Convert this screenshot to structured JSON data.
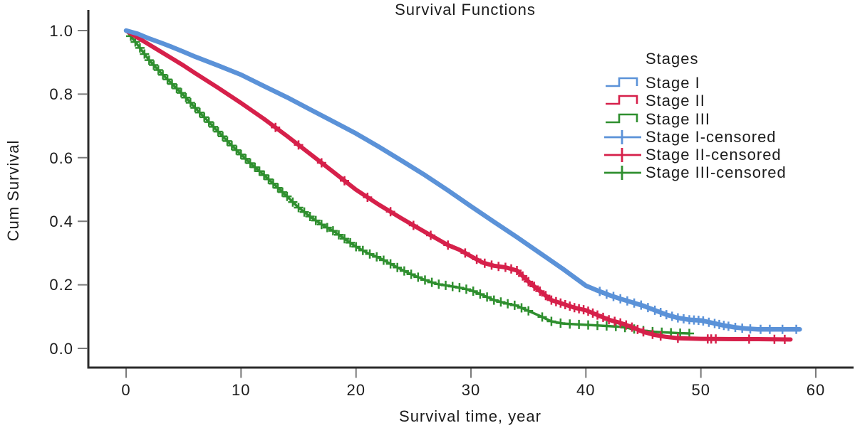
{
  "chart_data": {
    "type": "line",
    "subtype": "kaplan_meier_survival",
    "title": "Survival Functions",
    "xlabel": "Survival time, year",
    "ylabel": "Cum Survival",
    "xlim": [
      0,
      60
    ],
    "ylim": [
      0.0,
      1.0
    ],
    "grid": false,
    "x_ticks": [
      0,
      10,
      20,
      30,
      40,
      50,
      60
    ],
    "y_ticks": [
      1.0,
      0.8,
      0.6,
      0.4,
      0.2,
      0.0
    ],
    "x_tick_labels": [
      "0",
      "10",
      "20",
      "30",
      "40",
      "50",
      "60"
    ],
    "y_tick_labels": [
      "1.0",
      "0.8",
      "0.6",
      "0.4",
      "0.2",
      "0.0"
    ],
    "legend_position": "upper right",
    "legend": {
      "title": "Stages",
      "entries": [
        "Stage I",
        "Stage II",
        "Stage III",
        "Stage I-censored",
        "Stage II-censored",
        "Stage III-censored"
      ]
    },
    "series": [
      {
        "name": "Stage I",
        "color": "#5B92D8",
        "stroke_width": 6.5,
        "points": [
          [
            0,
            1.0
          ],
          [
            1,
            0.99
          ],
          [
            2,
            0.975
          ],
          [
            3,
            0.962
          ],
          [
            4,
            0.948
          ],
          [
            5,
            0.933
          ],
          [
            6,
            0.918
          ],
          [
            8,
            0.89
          ],
          [
            10,
            0.861
          ],
          [
            12,
            0.825
          ],
          [
            14,
            0.79
          ],
          [
            16,
            0.752
          ],
          [
            18,
            0.714
          ],
          [
            20,
            0.676
          ],
          [
            22,
            0.634
          ],
          [
            24,
            0.59
          ],
          [
            26,
            0.545
          ],
          [
            28,
            0.497
          ],
          [
            30,
            0.447
          ],
          [
            32,
            0.398
          ],
          [
            34,
            0.35
          ],
          [
            36,
            0.3
          ],
          [
            38,
            0.25
          ],
          [
            40,
            0.197
          ],
          [
            41,
            0.182
          ],
          [
            42,
            0.168
          ],
          [
            43,
            0.156
          ],
          [
            44,
            0.145
          ],
          [
            45,
            0.134
          ],
          [
            46,
            0.12
          ],
          [
            47,
            0.106
          ],
          [
            48,
            0.096
          ],
          [
            49,
            0.09
          ],
          [
            50,
            0.088
          ],
          [
            51,
            0.08
          ],
          [
            52,
            0.072
          ],
          [
            53,
            0.066
          ],
          [
            54,
            0.062
          ],
          [
            55,
            0.06
          ],
          [
            56,
            0.06
          ],
          [
            57,
            0.06
          ],
          [
            58.6,
            0.06
          ]
        ],
        "censored": [
          41.2,
          41.8,
          42.4,
          43,
          43.6,
          44.2,
          44.8,
          45.4,
          46,
          46.5,
          47,
          47.5,
          48,
          48.5,
          49,
          49.4,
          49.8,
          50.2,
          50.7,
          51.2,
          51.6,
          52,
          52.4,
          53,
          53.6,
          54.3,
          55.2,
          56,
          57.1,
          58.3
        ]
      },
      {
        "name": "Stage II",
        "color": "#D6204A",
        "stroke_width": 6,
        "points": [
          [
            0,
            1.0
          ],
          [
            1,
            0.978
          ],
          [
            2,
            0.956
          ],
          [
            3,
            0.934
          ],
          [
            4,
            0.912
          ],
          [
            5,
            0.89
          ],
          [
            6,
            0.866
          ],
          [
            8,
            0.82
          ],
          [
            10,
            0.772
          ],
          [
            12,
            0.722
          ],
          [
            14,
            0.668
          ],
          [
            16,
            0.612
          ],
          [
            18,
            0.556
          ],
          [
            20,
            0.499
          ],
          [
            22,
            0.452
          ],
          [
            24,
            0.408
          ],
          [
            26,
            0.366
          ],
          [
            28,
            0.325
          ],
          [
            29,
            0.31
          ],
          [
            30,
            0.29
          ],
          [
            31,
            0.27
          ],
          [
            32,
            0.26
          ],
          [
            33,
            0.255
          ],
          [
            34,
            0.245
          ],
          [
            35,
            0.21
          ],
          [
            36,
            0.18
          ],
          [
            37,
            0.152
          ],
          [
            38,
            0.14
          ],
          [
            39,
            0.128
          ],
          [
            40,
            0.12
          ],
          [
            41,
            0.105
          ],
          [
            42,
            0.09
          ],
          [
            43,
            0.08
          ],
          [
            44,
            0.067
          ],
          [
            45,
            0.052
          ],
          [
            46,
            0.042
          ],
          [
            47,
            0.036
          ],
          [
            48,
            0.032
          ],
          [
            50,
            0.03
          ],
          [
            53,
            0.029
          ],
          [
            55,
            0.029
          ],
          [
            57.8,
            0.028
          ]
        ],
        "censored": [
          13,
          15,
          17,
          19,
          21,
          23,
          25,
          26.5,
          28,
          29.5,
          30.5,
          31.2,
          31.8,
          32.4,
          33,
          33.5,
          34,
          34.5,
          35,
          35.5,
          36,
          36.5,
          37,
          37.4,
          37.8,
          38.2,
          38.6,
          39,
          39.4,
          39.8,
          40.2,
          40.6,
          41,
          41.5,
          42,
          42.5,
          43,
          43.5,
          44,
          44.5,
          45,
          45.8,
          46.5,
          48,
          50.6,
          50.9,
          51.3,
          54.2,
          56.4,
          57.3
        ]
      },
      {
        "name": "Stage III",
        "color": "#2F8F2F",
        "stroke_width": 3.5,
        "points": [
          [
            0,
            1.0
          ],
          [
            0.5,
            0.978
          ],
          [
            1,
            0.955
          ],
          [
            2,
            0.907
          ],
          [
            3,
            0.868
          ],
          [
            4,
            0.832
          ],
          [
            5,
            0.797
          ],
          [
            6,
            0.757
          ],
          [
            7,
            0.72
          ],
          [
            8,
            0.682
          ],
          [
            9,
            0.645
          ],
          [
            10,
            0.61
          ],
          [
            11,
            0.576
          ],
          [
            12,
            0.545
          ],
          [
            13,
            0.512
          ],
          [
            14,
            0.478
          ],
          [
            15,
            0.443
          ],
          [
            16,
            0.415
          ],
          [
            17,
            0.39
          ],
          [
            18,
            0.37
          ],
          [
            19,
            0.345
          ],
          [
            20,
            0.32
          ],
          [
            21,
            0.3
          ],
          [
            22,
            0.285
          ],
          [
            23,
            0.266
          ],
          [
            24,
            0.247
          ],
          [
            25,
            0.23
          ],
          [
            26,
            0.215
          ],
          [
            27,
            0.203
          ],
          [
            28,
            0.197
          ],
          [
            29,
            0.191
          ],
          [
            30,
            0.183
          ],
          [
            31,
            0.168
          ],
          [
            32,
            0.152
          ],
          [
            33,
            0.142
          ],
          [
            34,
            0.134
          ],
          [
            35,
            0.118
          ],
          [
            36,
            0.102
          ],
          [
            37,
            0.085
          ],
          [
            38,
            0.078
          ],
          [
            39,
            0.076
          ],
          [
            40,
            0.074
          ],
          [
            41,
            0.072
          ],
          [
            42,
            0.07
          ],
          [
            43,
            0.068
          ],
          [
            44,
            0.062
          ],
          [
            45,
            0.056
          ],
          [
            46,
            0.052
          ],
          [
            47,
            0.05
          ],
          [
            48,
            0.048
          ],
          [
            49,
            0.047
          ]
        ],
        "censored": [
          0.4,
          0.8,
          1.2,
          1.6,
          2,
          2.4,
          2.8,
          3.2,
          3.6,
          4,
          4.4,
          4.8,
          5.2,
          5.6,
          6,
          6.4,
          6.8,
          7.2,
          7.6,
          8,
          8.4,
          8.8,
          9.2,
          9.6,
          10,
          10.4,
          10.8,
          11.2,
          11.6,
          12,
          12.4,
          12.8,
          13.2,
          13.6,
          14,
          14.5,
          15,
          15.5,
          16,
          16.5,
          17,
          17.5,
          18,
          18.5,
          19,
          19.5,
          20,
          20.6,
          21.2,
          21.8,
          22.4,
          23,
          23.6,
          24.2,
          24.8,
          25.4,
          26,
          26.6,
          27.2,
          27.8,
          28.4,
          29,
          29.6,
          30.2,
          30.8,
          31.4,
          32,
          32.6,
          33.2,
          33.8,
          34.4,
          35,
          36.2,
          37,
          37.8,
          38.6,
          39.4,
          40.2,
          41,
          41.8,
          42.6,
          43.4,
          44.2,
          45,
          45.8,
          46.6,
          47.4,
          48.2,
          49
        ]
      }
    ]
  }
}
